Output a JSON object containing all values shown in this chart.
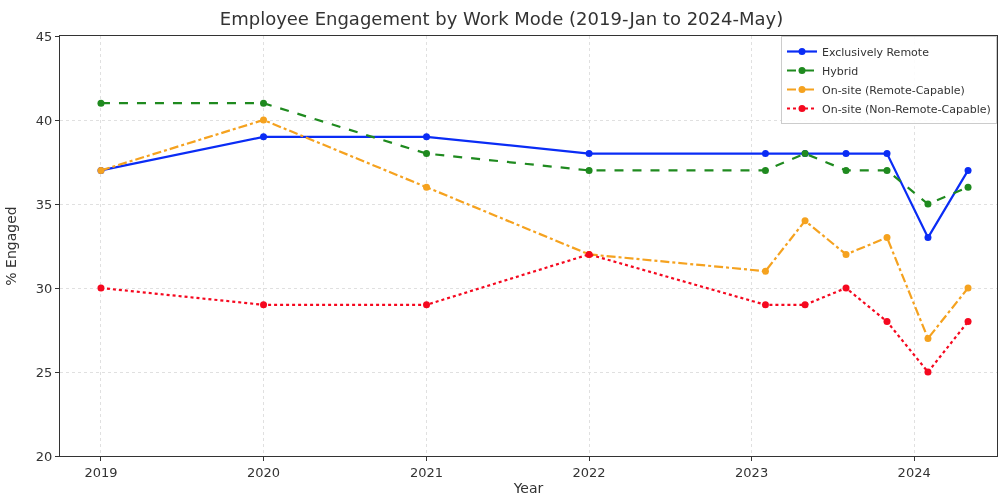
{
  "chart_data": {
    "type": "line",
    "title": "Employee Engagement by Work Mode (2019-Jan to 2024-May)",
    "xlabel": "Year",
    "ylabel": "% Engaged",
    "x": [
      "2019-01",
      "2020-01",
      "2021-01",
      "2022-01",
      "2023-02",
      "2023-05",
      "2023-08",
      "2023-11",
      "2024-02",
      "2024-05"
    ],
    "series": [
      {
        "name": "Exclusively Remote",
        "color": "#0a2cf5",
        "line_style": "solid",
        "values": [
          37,
          39,
          39,
          38,
          38,
          38,
          38,
          38,
          33,
          37
        ]
      },
      {
        "name": "Hybrid",
        "color": "#1f8a1f",
        "line_style": "dashed",
        "values": [
          41,
          41,
          38,
          37,
          37,
          38,
          37,
          37,
          35,
          36
        ]
      },
      {
        "name": "On-site (Remote-Capable)",
        "color": "#f5a21f",
        "line_style": "dashdot",
        "values": [
          37,
          40,
          36,
          32,
          31,
          34,
          32,
          33,
          27,
          30
        ]
      },
      {
        "name": "On-site (Non-Remote-Capable)",
        "color": "#f5081f",
        "line_style": "dotted",
        "values": [
          30,
          29,
          29,
          32,
          29,
          29,
          30,
          28,
          25,
          28
        ]
      }
    ],
    "xlim": [
      "2018-10-01",
      "2024-07-05"
    ],
    "xticks": [
      {
        "value": "2019-01-01",
        "label": "2019"
      },
      {
        "value": "2020-01-01",
        "label": "2020"
      },
      {
        "value": "2021-01-01",
        "label": "2021"
      },
      {
        "value": "2022-01-01",
        "label": "2022"
      },
      {
        "value": "2023-01-01",
        "label": "2023"
      },
      {
        "value": "2024-01-01",
        "label": "2024"
      }
    ],
    "ylim": [
      20,
      45
    ],
    "yticks": [
      20,
      25,
      30,
      35,
      40,
      45
    ],
    "grid": true,
    "legend": "top right",
    "marker": "circle"
  }
}
